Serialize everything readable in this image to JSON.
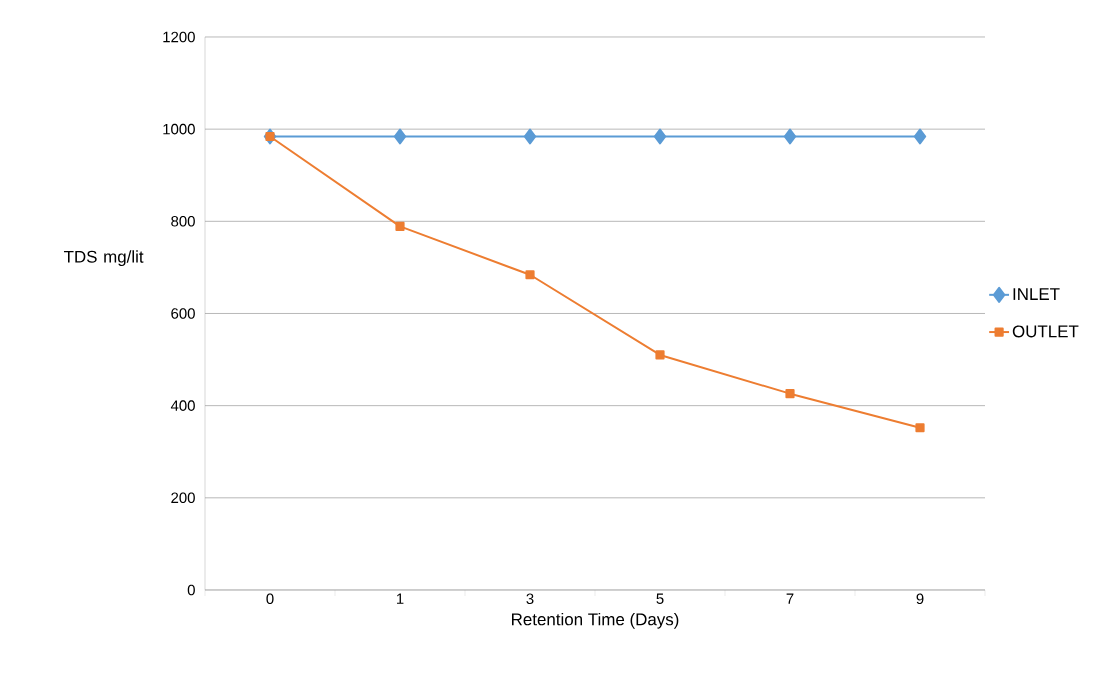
{
  "chart_data": {
    "type": "line",
    "xlabel": "Retention Time (Days)",
    "ylabel": "TDS mg/lit",
    "categories": [
      "0",
      "1",
      "3",
      "5",
      "7",
      "9"
    ],
    "series": [
      {
        "name": "INLET",
        "color": "#5b9bd5",
        "marker": "diamond",
        "values": [
          984,
          984,
          984,
          984,
          984,
          984
        ]
      },
      {
        "name": "OUTLET",
        "color": "#ed7d31",
        "marker": "square",
        "values": [
          984,
          789,
          684,
          510,
          426,
          352
        ]
      }
    ],
    "ylim": [
      0,
      1200
    ],
    "yticks": [
      0,
      200,
      400,
      600,
      800,
      1000,
      1200
    ],
    "grid": "y",
    "legend": "right",
    "line_style": "solid"
  }
}
